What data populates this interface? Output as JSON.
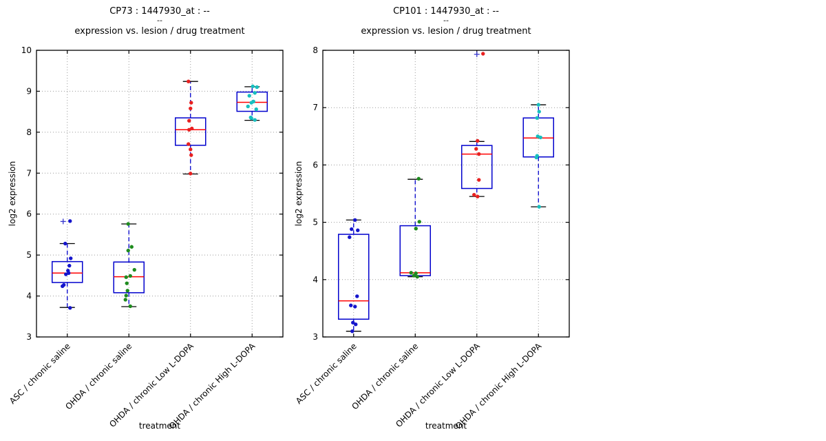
{
  "figure": {
    "background": "#ffffff"
  },
  "chart_data": [
    {
      "type": "box",
      "title": "CP73 : 1447930_at : --",
      "title_line2": "--",
      "title_line3": "expression vs. lesion / drug treatment",
      "xlabel": "treatment",
      "ylabel": "log2 expression",
      "ylim": [
        3,
        10
      ],
      "yticks": [
        3,
        4,
        5,
        6,
        7,
        8,
        9,
        10
      ],
      "grid": true,
      "legend": "none",
      "categories": [
        "ASC / chronic saline",
        "OHDA / chronic saline",
        "OHDA / chronic Low L-DOPA",
        "OHDA / chronic High L-DOPA"
      ],
      "colors": {
        "box": "#0000cd",
        "median": "#ff0000",
        "whisker": "#0000cd",
        "cap": "#000000",
        "outlier": "#3434cd",
        "grid": "#999999"
      },
      "series": [
        {
          "category": "ASC / chronic saline",
          "point_color": "#1515cc",
          "whislo": 3.72,
          "q1": 4.33,
          "med": 4.56,
          "q3": 4.84,
          "whishi": 5.28,
          "outliers": [
            [
              5.82,
              -6
            ]
          ],
          "points": [
            [
              5.83,
              4
            ],
            [
              5.28,
              -3
            ],
            [
              4.92,
              5
            ],
            [
              4.74,
              3
            ],
            [
              4.62,
              1
            ],
            [
              4.56,
              2
            ],
            [
              4.53,
              -2
            ],
            [
              4.27,
              -5
            ],
            [
              4.24,
              -7
            ],
            [
              3.71,
              4
            ]
          ]
        },
        {
          "category": "OHDA / chronic saline",
          "point_color": "#1e8b1e",
          "whislo": 3.74,
          "q1": 4.08,
          "med": 4.47,
          "q3": 4.83,
          "whishi": 5.76,
          "outliers": [],
          "points": [
            [
              5.76,
              -1
            ],
            [
              5.2,
              4
            ],
            [
              5.11,
              -1
            ],
            [
              4.64,
              8
            ],
            [
              4.49,
              2
            ],
            [
              4.46,
              -4
            ],
            [
              4.31,
              -3
            ],
            [
              4.13,
              -2
            ],
            [
              4.01,
              -4
            ],
            [
              3.91,
              -5
            ],
            [
              3.75,
              2
            ]
          ]
        },
        {
          "category": "OHDA / chronic Low L-DOPA",
          "point_color": "#e82020",
          "whislo": 6.98,
          "q1": 7.68,
          "med": 8.06,
          "q3": 8.35,
          "whishi": 9.24,
          "outliers": [],
          "points": [
            [
              9.24,
              -3
            ],
            [
              8.72,
              1
            ],
            [
              8.58,
              0
            ],
            [
              8.28,
              -2
            ],
            [
              8.09,
              2
            ],
            [
              8.06,
              -2
            ],
            [
              7.71,
              -3
            ],
            [
              7.58,
              0
            ],
            [
              7.44,
              1
            ],
            [
              6.99,
              0
            ]
          ]
        },
        {
          "category": "OHDA / chronic High L-DOPA",
          "point_color": "#17bfbf",
          "whislo": 8.29,
          "q1": 8.51,
          "med": 8.73,
          "q3": 8.98,
          "whishi": 9.11,
          "outliers": [],
          "points": [
            [
              9.12,
              1
            ],
            [
              9.1,
              7
            ],
            [
              8.96,
              4
            ],
            [
              8.89,
              -4
            ],
            [
              8.75,
              2
            ],
            [
              8.72,
              -1
            ],
            [
              8.63,
              -6
            ],
            [
              8.56,
              6
            ],
            [
              8.36,
              -2
            ],
            [
              8.34,
              -1
            ],
            [
              8.3,
              4
            ]
          ]
        }
      ]
    },
    {
      "type": "box",
      "title": "CP101 : 1447930_at : --",
      "title_line2": "--",
      "title_line3": "expression vs. lesion / drug treatment",
      "xlabel": "treatment",
      "ylabel": "log2 expression",
      "ylim": [
        3,
        8
      ],
      "yticks": [
        3,
        4,
        5,
        6,
        7,
        8
      ],
      "grid": true,
      "legend": "none",
      "categories": [
        "ASC / chronic saline",
        "OHDA / chronic saline",
        "OHDA / chronic Low L-DOPA",
        "OHDA / chronic High L-DOPA"
      ],
      "colors": {
        "box": "#0000cd",
        "median": "#ff0000",
        "whisker": "#0000cd",
        "cap": "#000000",
        "outlier": "#3434cd",
        "grid": "#999999"
      },
      "series": [
        {
          "category": "ASC / chronic saline",
          "point_color": "#1515cc",
          "whislo": 3.1,
          "q1": 3.31,
          "med": 3.63,
          "q3": 4.79,
          "whishi": 5.04,
          "outliers": [],
          "points": [
            [
              5.04,
              2
            ],
            [
              4.88,
              -3
            ],
            [
              4.86,
              6
            ],
            [
              4.74,
              -6
            ],
            [
              3.71,
              5
            ],
            [
              3.55,
              -4
            ],
            [
              3.53,
              2
            ],
            [
              3.25,
              -1
            ],
            [
              3.22,
              3
            ],
            [
              3.1,
              -2
            ]
          ]
        },
        {
          "category": "OHDA / chronic saline",
          "point_color": "#1e8b1e",
          "whislo": 4.05,
          "q1": 4.07,
          "med": 4.12,
          "q3": 4.94,
          "whishi": 5.75,
          "outliers": [],
          "points": [
            [
              5.76,
              5
            ],
            [
              5.01,
              6
            ],
            [
              4.89,
              1
            ],
            [
              4.12,
              -6
            ],
            [
              4.11,
              1
            ],
            [
              4.07,
              -2
            ],
            [
              4.05,
              3
            ]
          ]
        },
        {
          "category": "OHDA / chronic Low L-DOPA",
          "point_color": "#e82020",
          "whislo": 5.45,
          "q1": 5.59,
          "med": 6.19,
          "q3": 6.34,
          "whishi": 6.41,
          "outliers": [
            [
              7.93,
              0
            ]
          ],
          "points": [
            [
              7.94,
              9
            ],
            [
              6.42,
              1
            ],
            [
              6.28,
              -1
            ],
            [
              6.19,
              3
            ],
            [
              5.74,
              3
            ],
            [
              5.48,
              -4
            ],
            [
              5.45,
              1
            ]
          ]
        },
        {
          "category": "OHDA / chronic High L-DOPA",
          "point_color": "#17bfbf",
          "whislo": 5.27,
          "q1": 6.14,
          "med": 6.47,
          "q3": 6.82,
          "whishi": 7.05,
          "outliers": [],
          "points": [
            [
              7.05,
              0
            ],
            [
              6.93,
              1
            ],
            [
              6.82,
              -2
            ],
            [
              6.5,
              -1
            ],
            [
              6.48,
              3
            ],
            [
              6.16,
              -2
            ],
            [
              6.13,
              -3
            ],
            [
              5.27,
              1
            ]
          ]
        }
      ]
    }
  ]
}
